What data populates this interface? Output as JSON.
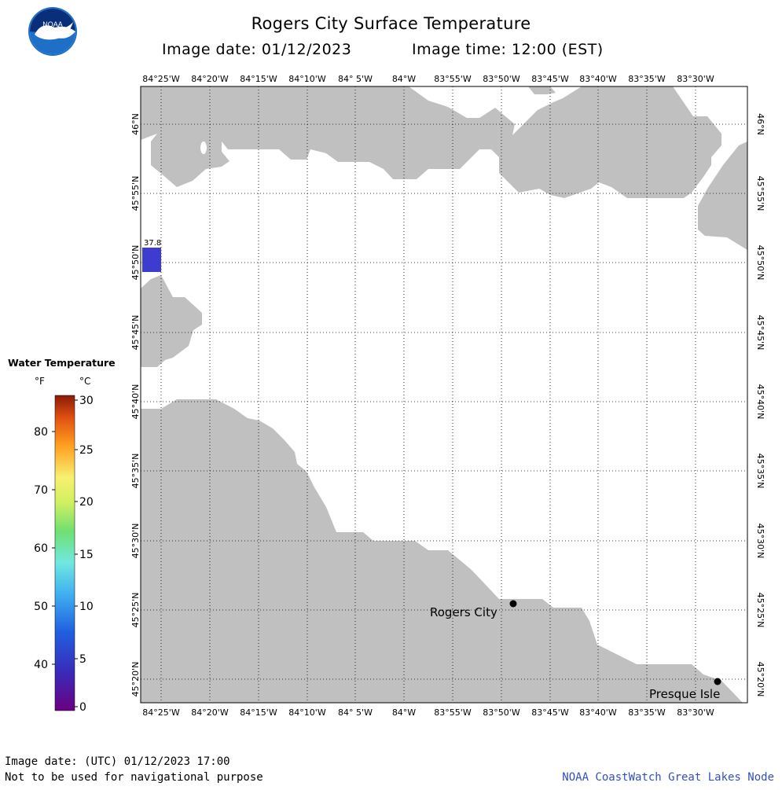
{
  "header": {
    "title": "Rogers City Surface Temperature",
    "image_date": "Image date: 01/12/2023",
    "image_time": "Image time: 12:00 (EST)"
  },
  "logo": {
    "text": "NOAA"
  },
  "map": {
    "lon_labels": [
      "84°25'W",
      "84°20'W",
      "84°15'W",
      "84°10'W",
      "84° 5'W",
      "84°W",
      "83°55'W",
      "83°50'W",
      "83°45'W",
      "83°40'W",
      "83°35'W",
      "83°30'W"
    ],
    "lat_labels": [
      "46°N",
      "45°55'N",
      "45°50'N",
      "45°45'N",
      "45°40'N",
      "45°35'N",
      "45°30'N",
      "45°25'N",
      "45°20'N"
    ],
    "places": [
      {
        "name": "Rogers City"
      },
      {
        "name": "Presque Isle"
      }
    ],
    "pixel_value": {
      "label": "37.8",
      "temperature_f": 37.8,
      "color": "#3c3ccf"
    },
    "land_color": "#c0c0c0",
    "water_color": "#ffffff"
  },
  "legend": {
    "title": "Water Temperature",
    "unit_f": "°F",
    "unit_c": "°C",
    "f_ticks": [
      "80",
      "70",
      "60",
      "50",
      "40"
    ],
    "c_ticks": [
      "30",
      "25",
      "20",
      "15",
      "10",
      "5",
      "0"
    ]
  },
  "footer": {
    "utc_date": "Image date: (UTC) 01/12/2023  17:00",
    "disclaimer": "Not to be used for navigational purpose",
    "credit": "NOAA CoastWatch Great Lakes Node"
  }
}
